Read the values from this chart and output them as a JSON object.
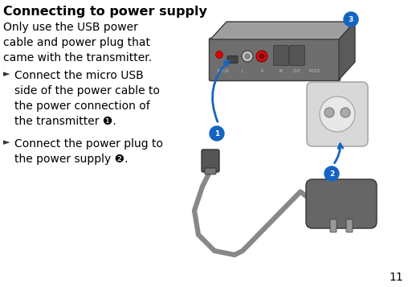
{
  "title": "Connecting to power supply",
  "body_text": "Only use the USB power\ncable and power plug that\ncame with the transmitter.",
  "bullet1_line1": "Connect the micro USB",
  "bullet1_line2": "side of the power cable to",
  "bullet1_line3": "the power connection of",
  "bullet1_line4": "the transmitter ❶.",
  "bullet2_line1": "Connect the power plug to",
  "bullet2_line2": "the power supply ❷.",
  "page_number": "11",
  "bg_color": "#ffffff",
  "title_fontsize": 11.5,
  "body_fontsize": 10.0,
  "bullet_fontsize": 10.0,
  "bullet_marker": "►",
  "circle_color": "#1565c0",
  "arrow_color": "#1565c0",
  "device_front_color": "#6e6e6e",
  "device_top_color": "#9e9e9e",
  "device_right_color": "#5a5a5a",
  "plug_body_color": "#666666",
  "socket_color": "#d8d8d8",
  "socket_edge_color": "#aaaaaa",
  "cable_color": "#888888",
  "cable_dark": "#555555"
}
